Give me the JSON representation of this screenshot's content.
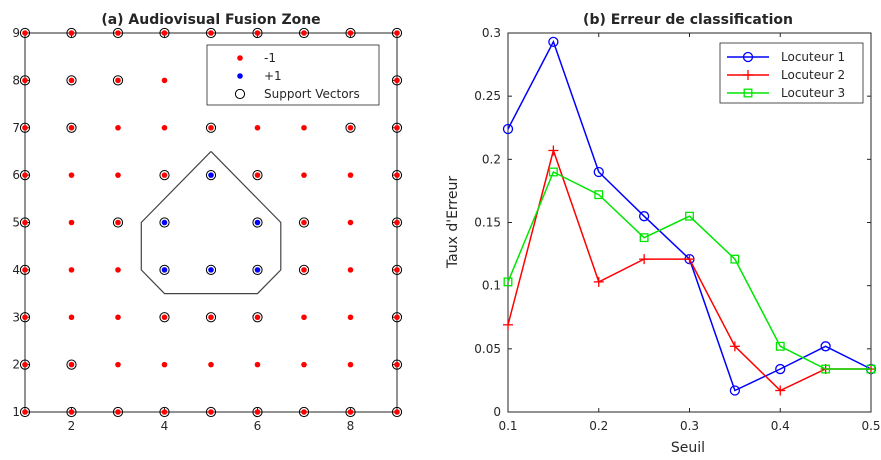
{
  "chart_data": [
    {
      "type": "scatter",
      "title": "(a) Audiovisual Fusion Zone",
      "xlabel": "",
      "ylabel": "",
      "xlim": [
        1,
        9
      ],
      "ylim": [
        1,
        9
      ],
      "xticks": [
        "2",
        "4",
        "6",
        "8"
      ],
      "yticks": [
        "1",
        "2",
        "3",
        "4",
        "5",
        "6",
        "7",
        "8",
        "9"
      ],
      "grid": false,
      "legend_position": "top-right",
      "legend": [
        {
          "label": "-1",
          "marker": "dot",
          "color": "#ff0000"
        },
        {
          "label": "+1",
          "marker": "dot",
          "color": "#0000ff"
        },
        {
          "label": "Support Vectors",
          "marker": "open-circle",
          "color": "#000000"
        }
      ],
      "class_neg": [
        [
          1,
          1
        ],
        [
          2,
          1
        ],
        [
          3,
          1
        ],
        [
          4,
          1
        ],
        [
          5,
          1
        ],
        [
          6,
          1
        ],
        [
          7,
          1
        ],
        [
          8,
          1
        ],
        [
          9,
          1
        ],
        [
          1,
          2
        ],
        [
          2,
          2
        ],
        [
          3,
          2
        ],
        [
          4,
          2
        ],
        [
          5,
          2
        ],
        [
          6,
          2
        ],
        [
          7,
          2
        ],
        [
          8,
          2
        ],
        [
          9,
          2
        ],
        [
          1,
          3
        ],
        [
          2,
          3
        ],
        [
          3,
          3
        ],
        [
          4,
          3
        ],
        [
          5,
          3
        ],
        [
          6,
          3
        ],
        [
          7,
          3
        ],
        [
          8,
          3
        ],
        [
          9,
          3
        ],
        [
          1,
          4
        ],
        [
          2,
          4
        ],
        [
          3,
          4
        ],
        [
          7,
          4
        ],
        [
          8,
          4
        ],
        [
          9,
          4
        ],
        [
          1,
          5
        ],
        [
          2,
          5
        ],
        [
          3,
          5
        ],
        [
          7,
          5
        ],
        [
          8,
          5
        ],
        [
          9,
          5
        ],
        [
          1,
          6
        ],
        [
          2,
          6
        ],
        [
          3,
          6
        ],
        [
          4,
          6
        ],
        [
          6,
          6
        ],
        [
          7,
          6
        ],
        [
          8,
          6
        ],
        [
          9,
          6
        ],
        [
          1,
          7
        ],
        [
          2,
          7
        ],
        [
          3,
          7
        ],
        [
          4,
          7
        ],
        [
          5,
          7
        ],
        [
          6,
          7
        ],
        [
          7,
          7
        ],
        [
          8,
          7
        ],
        [
          9,
          7
        ],
        [
          1,
          8
        ],
        [
          2,
          8
        ],
        [
          3,
          8
        ],
        [
          4,
          8
        ],
        [
          9,
          8
        ],
        [
          1,
          9
        ],
        [
          2,
          9
        ],
        [
          3,
          9
        ],
        [
          4,
          9
        ],
        [
          5,
          9
        ],
        [
          6,
          9
        ],
        [
          7,
          9
        ],
        [
          8,
          9
        ],
        [
          9,
          9
        ]
      ],
      "class_pos": [
        [
          5,
          6
        ],
        [
          4,
          5
        ],
        [
          6,
          5
        ],
        [
          4,
          4
        ],
        [
          5,
          4
        ],
        [
          6,
          4
        ]
      ],
      "support_vectors": [
        [
          1,
          1
        ],
        [
          2,
          1
        ],
        [
          3,
          1
        ],
        [
          4,
          1
        ],
        [
          5,
          1
        ],
        [
          6,
          1
        ],
        [
          7,
          1
        ],
        [
          8,
          1
        ],
        [
          9,
          1
        ],
        [
          1,
          2
        ],
        [
          2,
          2
        ],
        [
          9,
          2
        ],
        [
          1,
          3
        ],
        [
          4,
          3
        ],
        [
          5,
          3
        ],
        [
          6,
          3
        ],
        [
          9,
          3
        ],
        [
          1,
          4
        ],
        [
          4,
          4
        ],
        [
          5,
          4
        ],
        [
          6,
          4
        ],
        [
          7,
          4
        ],
        [
          9,
          4
        ],
        [
          1,
          5
        ],
        [
          3,
          5
        ],
        [
          4,
          5
        ],
        [
          6,
          5
        ],
        [
          7,
          5
        ],
        [
          9,
          5
        ],
        [
          1,
          6
        ],
        [
          4,
          6
        ],
        [
          5,
          6
        ],
        [
          6,
          6
        ],
        [
          9,
          6
        ],
        [
          1,
          7
        ],
        [
          2,
          7
        ],
        [
          5,
          7
        ],
        [
          8,
          7
        ],
        [
          9,
          7
        ],
        [
          1,
          8
        ],
        [
          2,
          8
        ],
        [
          3,
          8
        ],
        [
          9,
          8
        ],
        [
          1,
          9
        ],
        [
          2,
          9
        ],
        [
          3,
          9
        ],
        [
          4,
          9
        ],
        [
          5,
          9
        ],
        [
          6,
          9
        ],
        [
          7,
          9
        ],
        [
          8,
          9
        ],
        [
          9,
          9
        ]
      ],
      "boundary": [
        [
          5,
          6.5
        ],
        [
          6.5,
          5
        ],
        [
          6.5,
          4
        ],
        [
          6,
          3.5
        ],
        [
          4,
          3.5
        ],
        [
          3.5,
          4
        ],
        [
          3.5,
          5
        ],
        [
          5,
          6.5
        ]
      ],
      "boundary_color": "#444444"
    },
    {
      "type": "line",
      "title": "(b) Erreur de classification",
      "xlabel": "Seuil",
      "ylabel": "Taux d'Erreur",
      "xlim": [
        0.1,
        0.5
      ],
      "ylim": [
        0,
        0.3
      ],
      "xticks": [
        "0.1",
        "0.2",
        "0.3",
        "0.4",
        "0.5"
      ],
      "yticks": [
        "0",
        "0.05",
        "0.1",
        "0.15",
        "0.2",
        "0.25",
        "0.3"
      ],
      "grid": false,
      "legend_position": "top-right",
      "x": [
        0.1,
        0.15,
        0.2,
        0.25,
        0.3,
        0.35,
        0.4,
        0.45,
        0.5
      ],
      "series": [
        {
          "name": "Locuteur 1",
          "color": "#0000ff",
          "marker": "circle",
          "values": [
            0.224,
            0.293,
            0.19,
            0.155,
            0.121,
            0.017,
            0.034,
            0.052,
            0.034
          ]
        },
        {
          "name": "Locuteur 2",
          "color": "#ff0000",
          "marker": "plus",
          "values": [
            0.069,
            0.207,
            0.103,
            0.121,
            0.121,
            0.052,
            0.017,
            0.034,
            0.034
          ]
        },
        {
          "name": "Locuteur 3",
          "color": "#00e600",
          "marker": "square",
          "values": [
            0.103,
            0.19,
            0.172,
            0.138,
            0.155,
            0.121,
            0.052,
            0.034,
            0.034
          ]
        }
      ]
    }
  ]
}
